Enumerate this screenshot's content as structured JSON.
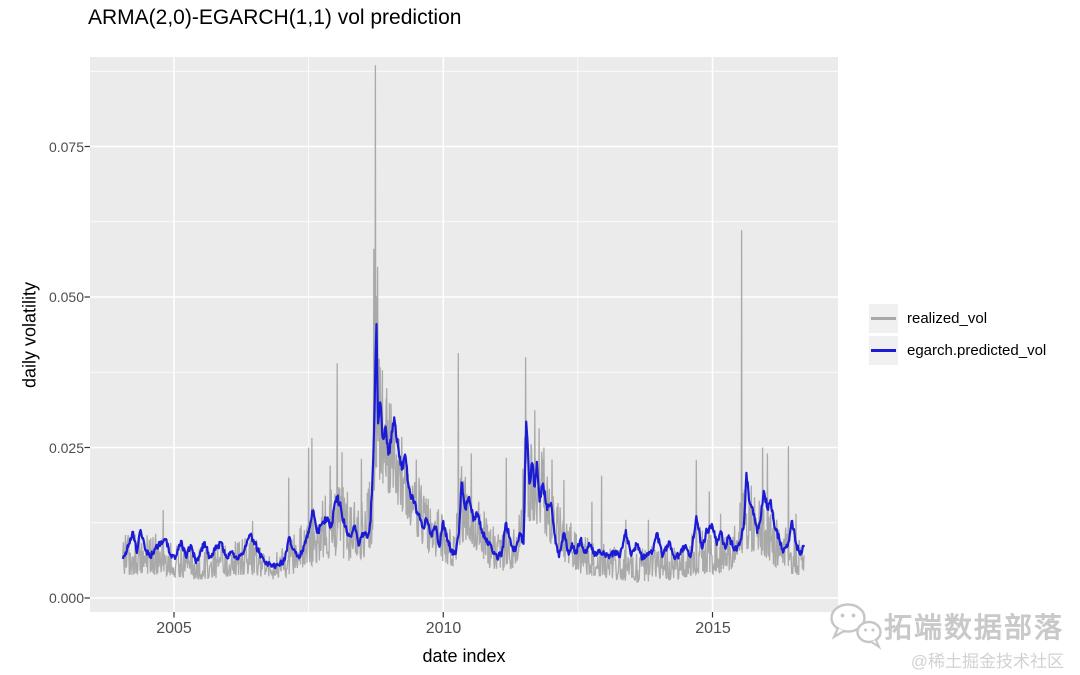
{
  "title": "ARMA(2,0)-EGARCH(1,1) vol prediction",
  "watermark": {
    "icon": "wechat-icon",
    "brand": "拓端数据部落",
    "community": "@稀土掘金技术社区",
    "color": "#c9c9c9"
  },
  "chart_data": {
    "type": "line",
    "title": "ARMA(2,0)-EGARCH(1,1) vol prediction",
    "xlabel": "date index",
    "ylabel": "daily volatility",
    "grid": true,
    "legend_position": "right",
    "panel_bg": "#ebebeb",
    "grid_color": "#ffffff",
    "tick_color": "#333333",
    "x_range": [
      2004.05,
      2016.7
    ],
    "xlim": [
      2003.44,
      2017.33
    ],
    "ylim": [
      -0.0023,
      0.0899
    ],
    "x_ticks": [
      {
        "v": 2005,
        "label": "2005"
      },
      {
        "v": 2010,
        "label": "2010"
      },
      {
        "v": 2015,
        "label": "2015"
      }
    ],
    "y_ticks": [
      {
        "v": 0.0,
        "label": "0.000"
      },
      {
        "v": 0.025,
        "label": "0.025"
      },
      {
        "v": 0.05,
        "label": "0.050"
      },
      {
        "v": 0.075,
        "label": "0.075"
      }
    ],
    "x_minor": [
      2007.5,
      2012.5
    ],
    "y_minor": [
      0.0125,
      0.0375,
      0.0625,
      0.0875
    ],
    "series": [
      {
        "name": "realized_vol",
        "color": "#a9a9a9",
        "width": 1.3,
        "style": "noisy",
        "envelope": [
          [
            2004.05,
            0.0035,
            0.0105
          ],
          [
            2004.5,
            0.004,
            0.0115
          ],
          [
            2005.0,
            0.0035,
            0.009
          ],
          [
            2005.5,
            0.003,
            0.0088
          ],
          [
            2006.0,
            0.0035,
            0.009
          ],
          [
            2006.45,
            0.004,
            0.0105
          ],
          [
            2006.8,
            0.003,
            0.007
          ],
          [
            2007.1,
            0.0035,
            0.009
          ],
          [
            2007.45,
            0.005,
            0.014
          ],
          [
            2007.7,
            0.006,
            0.016
          ],
          [
            2008.0,
            0.007,
            0.02
          ],
          [
            2008.3,
            0.006,
            0.017
          ],
          [
            2008.55,
            0.0065,
            0.016
          ],
          [
            2008.68,
            0.009,
            0.022
          ],
          [
            2008.74,
            0.022,
            0.058
          ],
          [
            2008.8,
            0.02,
            0.046
          ],
          [
            2008.9,
            0.018,
            0.037
          ],
          [
            2009.05,
            0.017,
            0.034
          ],
          [
            2009.25,
            0.014,
            0.028
          ],
          [
            2009.5,
            0.01,
            0.021
          ],
          [
            2009.75,
            0.0075,
            0.016
          ],
          [
            2010.0,
            0.006,
            0.0145
          ],
          [
            2010.2,
            0.005,
            0.011
          ],
          [
            2010.35,
            0.009,
            0.023
          ],
          [
            2010.6,
            0.008,
            0.019
          ],
          [
            2010.85,
            0.005,
            0.0125
          ],
          [
            2011.1,
            0.0045,
            0.0115
          ],
          [
            2011.35,
            0.005,
            0.012
          ],
          [
            2011.52,
            0.013,
            0.03
          ],
          [
            2011.8,
            0.012,
            0.026
          ],
          [
            2012.0,
            0.009,
            0.02
          ],
          [
            2012.25,
            0.006,
            0.014
          ],
          [
            2012.55,
            0.004,
            0.0105
          ],
          [
            2012.9,
            0.0035,
            0.0095
          ],
          [
            2013.2,
            0.003,
            0.0085
          ],
          [
            2013.6,
            0.0025,
            0.008
          ],
          [
            2014.0,
            0.003,
            0.009
          ],
          [
            2014.4,
            0.003,
            0.0085
          ],
          [
            2014.72,
            0.004,
            0.0125
          ],
          [
            2015.0,
            0.004,
            0.011
          ],
          [
            2015.35,
            0.0045,
            0.0105
          ],
          [
            2015.6,
            0.008,
            0.02
          ],
          [
            2015.95,
            0.007,
            0.019
          ],
          [
            2016.2,
            0.005,
            0.013
          ],
          [
            2016.45,
            0.004,
            0.011
          ],
          [
            2016.7,
            0.0035,
            0.009
          ]
        ],
        "spikes": [
          [
            2004.8,
            0.0146
          ],
          [
            2006.46,
            0.0128
          ],
          [
            2007.13,
            0.02
          ],
          [
            2007.5,
            0.025
          ],
          [
            2007.56,
            0.0266
          ],
          [
            2007.9,
            0.022
          ],
          [
            2008.03,
            0.039
          ],
          [
            2008.12,
            0.0242
          ],
          [
            2008.48,
            0.0231
          ],
          [
            2008.71,
            0.058
          ],
          [
            2008.74,
            0.0885
          ],
          [
            2008.78,
            0.055
          ],
          [
            2008.94,
            0.0332
          ],
          [
            2009.5,
            0.023
          ],
          [
            2010.28,
            0.0407
          ],
          [
            2010.52,
            0.024
          ],
          [
            2011.17,
            0.0233
          ],
          [
            2011.53,
            0.04
          ],
          [
            2011.7,
            0.0312
          ],
          [
            2011.78,
            0.0282
          ],
          [
            2011.87,
            0.025
          ],
          [
            2012.02,
            0.023
          ],
          [
            2012.24,
            0.0196
          ],
          [
            2012.76,
            0.016
          ],
          [
            2012.94,
            0.0203
          ],
          [
            2013.39,
            0.013
          ],
          [
            2013.81,
            0.013
          ],
          [
            2014.7,
            0.0229
          ],
          [
            2014.94,
            0.0177
          ],
          [
            2015.15,
            0.014
          ],
          [
            2015.54,
            0.0611
          ],
          [
            2015.93,
            0.025
          ],
          [
            2016.02,
            0.024
          ],
          [
            2016.41,
            0.0252
          ],
          [
            2016.55,
            0.014
          ]
        ]
      },
      {
        "name": "egarch.predicted_vol",
        "color": "#1b1bd6",
        "width": 2.2,
        "style": "line",
        "points": [
          [
            2004.05,
            0.0065
          ],
          [
            2004.15,
            0.0085
          ],
          [
            2004.24,
            0.011
          ],
          [
            2004.31,
            0.0075
          ],
          [
            2004.38,
            0.0113
          ],
          [
            2004.46,
            0.0082
          ],
          [
            2004.55,
            0.0068
          ],
          [
            2004.65,
            0.0082
          ],
          [
            2004.75,
            0.009
          ],
          [
            2004.85,
            0.0098
          ],
          [
            2004.93,
            0.0072
          ],
          [
            2005.02,
            0.0065
          ],
          [
            2005.13,
            0.0095
          ],
          [
            2005.22,
            0.0068
          ],
          [
            2005.31,
            0.0088
          ],
          [
            2005.41,
            0.0058
          ],
          [
            2005.5,
            0.0078
          ],
          [
            2005.57,
            0.0093
          ],
          [
            2005.66,
            0.0068
          ],
          [
            2005.77,
            0.008
          ],
          [
            2005.87,
            0.0093
          ],
          [
            2005.97,
            0.0068
          ],
          [
            2006.07,
            0.0076
          ],
          [
            2006.2,
            0.0066
          ],
          [
            2006.31,
            0.008
          ],
          [
            2006.42,
            0.0104
          ],
          [
            2006.5,
            0.0092
          ],
          [
            2006.58,
            0.0075
          ],
          [
            2006.68,
            0.006
          ],
          [
            2006.81,
            0.0052
          ],
          [
            2006.95,
            0.0055
          ],
          [
            2007.05,
            0.0062
          ],
          [
            2007.13,
            0.01
          ],
          [
            2007.22,
            0.008
          ],
          [
            2007.32,
            0.0066
          ],
          [
            2007.42,
            0.0088
          ],
          [
            2007.5,
            0.0108
          ],
          [
            2007.58,
            0.0145
          ],
          [
            2007.66,
            0.0108
          ],
          [
            2007.74,
            0.0122
          ],
          [
            2007.83,
            0.0133
          ],
          [
            2007.92,
            0.0118
          ],
          [
            2008.02,
            0.0168
          ],
          [
            2008.1,
            0.015
          ],
          [
            2008.18,
            0.0118
          ],
          [
            2008.27,
            0.0103
          ],
          [
            2008.35,
            0.0118
          ],
          [
            2008.44,
            0.0088
          ],
          [
            2008.52,
            0.0108
          ],
          [
            2008.59,
            0.01
          ],
          [
            2008.65,
            0.0128
          ],
          [
            2008.7,
            0.023
          ],
          [
            2008.74,
            0.039
          ],
          [
            2008.76,
            0.0455
          ],
          [
            2008.79,
            0.029
          ],
          [
            2008.83,
            0.0325
          ],
          [
            2008.88,
            0.0265
          ],
          [
            2008.93,
            0.0285
          ],
          [
            2008.98,
            0.0238
          ],
          [
            2009.03,
            0.0258
          ],
          [
            2009.09,
            0.03
          ],
          [
            2009.16,
            0.0252
          ],
          [
            2009.23,
            0.0213
          ],
          [
            2009.29,
            0.0238
          ],
          [
            2009.36,
            0.0183
          ],
          [
            2009.45,
            0.0158
          ],
          [
            2009.54,
            0.014
          ],
          [
            2009.62,
            0.0118
          ],
          [
            2009.7,
            0.013
          ],
          [
            2009.78,
            0.0103
          ],
          [
            2009.86,
            0.0118
          ],
          [
            2009.93,
            0.0085
          ],
          [
            2010.0,
            0.0128
          ],
          [
            2010.07,
            0.0098
          ],
          [
            2010.15,
            0.0078
          ],
          [
            2010.23,
            0.0073
          ],
          [
            2010.29,
            0.0108
          ],
          [
            2010.34,
            0.0192
          ],
          [
            2010.41,
            0.0148
          ],
          [
            2010.48,
            0.0168
          ],
          [
            2010.56,
            0.0128
          ],
          [
            2010.64,
            0.014
          ],
          [
            2010.72,
            0.0108
          ],
          [
            2010.81,
            0.0098
          ],
          [
            2010.91,
            0.0078
          ],
          [
            2011.0,
            0.0066
          ],
          [
            2011.09,
            0.0076
          ],
          [
            2011.17,
            0.0125
          ],
          [
            2011.26,
            0.0088
          ],
          [
            2011.34,
            0.0078
          ],
          [
            2011.42,
            0.0108
          ],
          [
            2011.49,
            0.009
          ],
          [
            2011.54,
            0.0293
          ],
          [
            2011.6,
            0.019
          ],
          [
            2011.65,
            0.0224
          ],
          [
            2011.7,
            0.0185
          ],
          [
            2011.74,
            0.0226
          ],
          [
            2011.79,
            0.016
          ],
          [
            2011.85,
            0.019
          ],
          [
            2011.93,
            0.0146
          ],
          [
            2012.0,
            0.0158
          ],
          [
            2012.09,
            0.0091
          ],
          [
            2012.15,
            0.0068
          ],
          [
            2012.24,
            0.0108
          ],
          [
            2012.33,
            0.0072
          ],
          [
            2012.39,
            0.0091
          ],
          [
            2012.47,
            0.0074
          ],
          [
            2012.55,
            0.0098
          ],
          [
            2012.63,
            0.0076
          ],
          [
            2012.72,
            0.0088
          ],
          [
            2012.81,
            0.007
          ],
          [
            2012.9,
            0.008
          ],
          [
            2012.99,
            0.0072
          ],
          [
            2013.08,
            0.0066
          ],
          [
            2013.18,
            0.0077
          ],
          [
            2013.28,
            0.0068
          ],
          [
            2013.39,
            0.0113
          ],
          [
            2013.48,
            0.0073
          ],
          [
            2013.59,
            0.0089
          ],
          [
            2013.7,
            0.0066
          ],
          [
            2013.8,
            0.0074
          ],
          [
            2013.9,
            0.0079
          ],
          [
            2013.97,
            0.0108
          ],
          [
            2014.07,
            0.0068
          ],
          [
            2014.19,
            0.0094
          ],
          [
            2014.29,
            0.0066
          ],
          [
            2014.39,
            0.0072
          ],
          [
            2014.5,
            0.0088
          ],
          [
            2014.59,
            0.0068
          ],
          [
            2014.7,
            0.0136
          ],
          [
            2014.8,
            0.0084
          ],
          [
            2014.9,
            0.0113
          ],
          [
            2015.0,
            0.0119
          ],
          [
            2015.08,
            0.0088
          ],
          [
            2015.15,
            0.0111
          ],
          [
            2015.23,
            0.0084
          ],
          [
            2015.3,
            0.0104
          ],
          [
            2015.4,
            0.0079
          ],
          [
            2015.5,
            0.0088
          ],
          [
            2015.58,
            0.0118
          ],
          [
            2015.63,
            0.0208
          ],
          [
            2015.69,
            0.0158
          ],
          [
            2015.76,
            0.0138
          ],
          [
            2015.83,
            0.0108
          ],
          [
            2015.89,
            0.0128
          ],
          [
            2015.95,
            0.0178
          ],
          [
            2016.02,
            0.0148
          ],
          [
            2016.08,
            0.0163
          ],
          [
            2016.15,
            0.0118
          ],
          [
            2016.24,
            0.0098
          ],
          [
            2016.32,
            0.0078
          ],
          [
            2016.4,
            0.0088
          ],
          [
            2016.48,
            0.0128
          ],
          [
            2016.56,
            0.0088
          ],
          [
            2016.63,
            0.0072
          ],
          [
            2016.7,
            0.0088
          ]
        ]
      }
    ]
  }
}
